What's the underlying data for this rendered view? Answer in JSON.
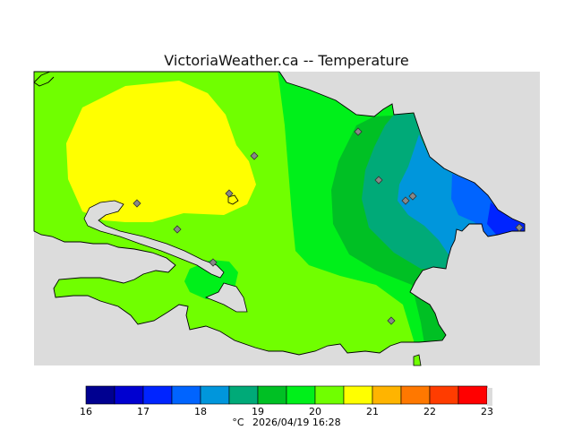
{
  "title": "VictoriaWeather.ca -- Temperature",
  "legend": {
    "ticks": [
      "16",
      "17",
      "18",
      "19",
      "20",
      "21",
      "22",
      "23"
    ],
    "colors": [
      "#000090",
      "#0000d0",
      "#0024ff",
      "#0064ff",
      "#0096dc",
      "#00aa78",
      "#00c024",
      "#00f01a",
      "#70ff00",
      "#ffff00",
      "#ffb400",
      "#ff7800",
      "#ff3c00",
      "#ff0000"
    ],
    "unit": "°C",
    "timestamp": "2026/04/19 16:28"
  },
  "colors": {
    "sea": "#dcdcdc",
    "land_base": "#70ff00",
    "zone_21": "#ffff00",
    "zone_20": "#00f01a",
    "zone_19": "#00c024",
    "zone_18": "#00aa78",
    "zone_17": "#0096dc",
    "zone_16": "#0064ff",
    "zone_15": "#0024ff",
    "station_marker": "#888888"
  }
}
